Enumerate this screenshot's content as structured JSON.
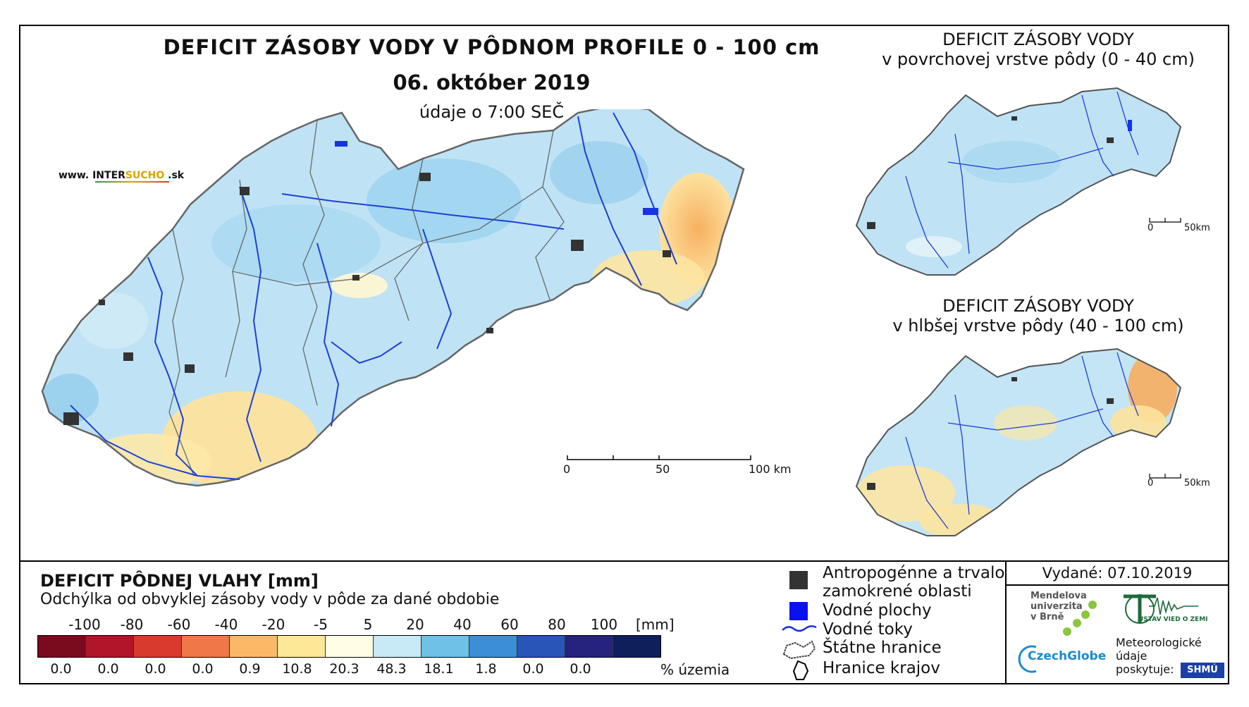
{
  "title": {
    "main": "DEFICIT ZÁSOBY VODY V PÔDNOM PROFILE 0 - 100 cm",
    "date": "06. október 2019",
    "time": "údaje o 7:00 SEČ"
  },
  "website": {
    "prefix": "www. INTER",
    "highlight": "SUCHO",
    "suffix": " .sk"
  },
  "inset_top": {
    "title_line1": "DEFICIT ZÁSOBY VODY",
    "title_line2": "v povrchovej vrstve pôdy (0 - 40 cm)",
    "scale_0": "0",
    "scale_50": "50km"
  },
  "inset_bottom": {
    "title_line1": "DEFICIT ZÁSOBY VODY",
    "title_line2": "v hlbšej vrstve pôdy (40 - 100 cm)",
    "scale_0": "0",
    "scale_50": "50km"
  },
  "main_scale": {
    "s0": "0",
    "s50": "50",
    "s100": "100 km"
  },
  "legend": {
    "title": "DEFICIT PÔDNEJ VLAHY [mm]",
    "subtitle": "Odchýlka od obvyklej zásoby vody v pôde za dané obdobie",
    "unit": "[mm]",
    "pct_unit": "% územia",
    "ticks": [
      "-100",
      "-80",
      "-60",
      "-40",
      "-20",
      "-5",
      "5",
      "20",
      "40",
      "60",
      "80",
      "100"
    ],
    "colors": [
      "#7a0a1e",
      "#b0152a",
      "#d93a2e",
      "#f07848",
      "#fbb968",
      "#fde898",
      "#fffde6",
      "#c8e9f6",
      "#6fc1e8",
      "#3c8fd6",
      "#2a55b8",
      "#25237e",
      "#0f1f5c"
    ],
    "percentages": [
      "0.0",
      "0.0",
      "0.0",
      "0.0",
      "0.9",
      "10.8",
      "20.3",
      "48.3",
      "18.1",
      "1.8",
      "0.0",
      "0.0"
    ]
  },
  "map_legend": {
    "urban_line1": "Antropogénne a trvalo",
    "urban_line2": "zamokrené oblasti",
    "water_bodies": "Vodné plochy",
    "rivers": "Vodné toky",
    "state_border": "Štátne hranice",
    "region_border": "Hranice krajov"
  },
  "issued": "Vydané: 07.10.2019",
  "logos": {
    "mendel_1": "Mendelova",
    "mendel_2": "univerzita",
    "mendel_3": "v Brně",
    "czechglobe": "CzechGlobe",
    "uvgz": "ÚSTAV VIED O ZEMI",
    "meteo_1": "Meteorologické",
    "meteo_2": "údaje",
    "meteo_3": "poskytuje:",
    "shmu": "SHMÚ"
  }
}
